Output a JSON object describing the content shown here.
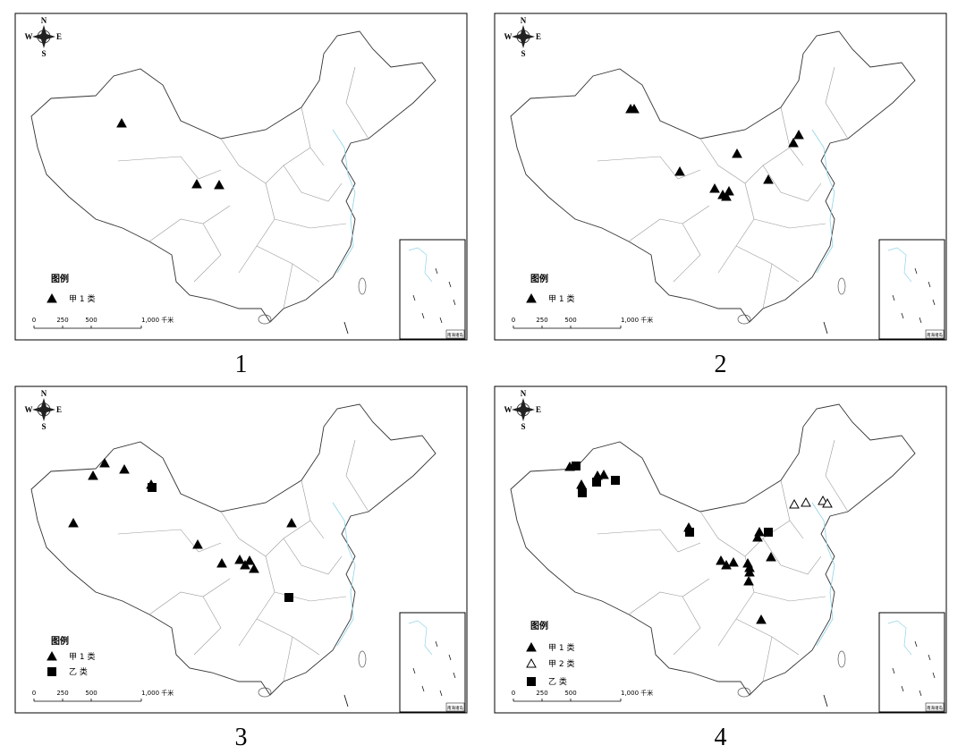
{
  "panels": [
    {
      "label": "1",
      "compass": {
        "n": "N",
        "s": "S",
        "w": "W",
        "e": "E"
      },
      "legend": {
        "title": "图例",
        "items": [
          "甲 1 类"
        ]
      },
      "scale": [
        "0",
        "250",
        "500",
        "1,000 千米"
      ],
      "inset_label": "南海诸岛"
    },
    {
      "label": "2",
      "compass": {
        "n": "N",
        "s": "S",
        "w": "W",
        "e": "E"
      },
      "legend": {
        "title": "图例",
        "items": [
          "甲 1 类"
        ]
      },
      "scale": [
        "0",
        "250",
        "500",
        "1,000 千米"
      ],
      "inset_label": "南海诸岛"
    },
    {
      "label": "3",
      "compass": {
        "n": "N",
        "s": "S",
        "w": "W",
        "e": "E"
      },
      "legend": {
        "title": "图例",
        "items": [
          "甲 1 类",
          "乙 类"
        ]
      },
      "scale": [
        "0",
        "250",
        "500",
        "1,000 千米"
      ],
      "inset_label": "南海诸岛"
    },
    {
      "label": "4",
      "compass": {
        "n": "N",
        "s": "S",
        "w": "W",
        "e": "E"
      },
      "legend": {
        "title": "图例",
        "items": [
          "甲 1 类",
          "甲 2 类",
          "乙 类"
        ]
      },
      "scale": [
        "0",
        "250",
        "500",
        "1,000 千米"
      ],
      "inset_label": "南海诸岛"
    }
  ]
}
